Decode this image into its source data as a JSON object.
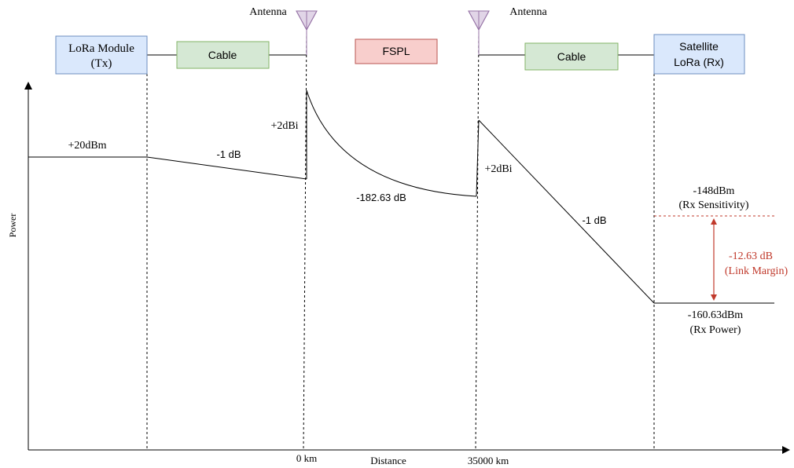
{
  "blocks": {
    "tx": {
      "line1": "LoRa Module",
      "line2": "(Tx)"
    },
    "cable_left": {
      "label": "Cable"
    },
    "fspl": {
      "label": "FSPL"
    },
    "cable_right": {
      "label": "Cable"
    },
    "rx": {
      "line1": "Satellite",
      "line2": "LoRa (Rx)"
    }
  },
  "antennas": {
    "left": {
      "label": "Antenna"
    },
    "right": {
      "label": "Antenna"
    }
  },
  "axes": {
    "y_label": "Power",
    "x_label": "Distance",
    "x_tick_left": "0 km",
    "x_tick_right": "35000 km"
  },
  "annotations": {
    "tx_power": "+20dBm",
    "cable_loss_left": "-1 dB",
    "antenna_gain_left": "+2dBi",
    "fspl_loss": "-182.63 dB",
    "antenna_gain_right": "+2dBi",
    "cable_loss_right": "-1 dB",
    "rx_sensitivity_value": "-148dBm",
    "rx_sensitivity_label": "(Rx Sensitivity)",
    "link_margin_value": "-12.63 dB",
    "link_margin_label": "(Link Margin)",
    "rx_power_value": "-160.63dBm",
    "rx_power_label": "(Rx Power)"
  },
  "colors": {
    "tx_rx_fill": "#dae8fc",
    "tx_rx_stroke": "#6c8ebf",
    "cable_fill": "#d5e8d4",
    "cable_stroke": "#82b366",
    "fspl_fill": "#f8cecc",
    "fspl_stroke": "#b85450",
    "antenna_fill": "#e1d5e7",
    "antenna_stroke": "#9673a6",
    "margin_color": "#c0392b"
  }
}
